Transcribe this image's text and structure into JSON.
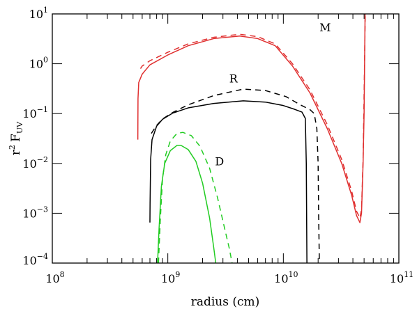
{
  "chart_data": {
    "type": "line",
    "title": "",
    "xlabel": "radius (cm)",
    "ylabel": "r² F_UV",
    "x_scale": "log",
    "y_scale": "log",
    "xlim": [
      100000000.0,
      100000000000.0
    ],
    "ylim": [
      0.0001,
      10
    ],
    "grid": false,
    "legend": "none",
    "x_ticks": [
      {
        "value": 100000000.0,
        "base": "10",
        "exp": "8"
      },
      {
        "value": 1000000000.0,
        "base": "10",
        "exp": "9"
      },
      {
        "value": 10000000000.0,
        "base": "10",
        "exp": "10"
      },
      {
        "value": 100000000000.0,
        "base": "10",
        "exp": "11"
      }
    ],
    "y_ticks": [
      {
        "value": 0.0001,
        "base": "10",
        "exp": "−4"
      },
      {
        "value": 0.001,
        "base": "10",
        "exp": "−3"
      },
      {
        "value": 0.01,
        "base": "10",
        "exp": "−2"
      },
      {
        "value": 0.1,
        "base": "10",
        "exp": "−1"
      },
      {
        "value": 1,
        "base": "10",
        "exp": "0"
      },
      {
        "value": 10,
        "base": "10",
        "exp": "1"
      }
    ],
    "annotations": [
      {
        "text": "M",
        "x": 23000000000.0,
        "y": 4.5
      },
      {
        "text": "R",
        "x": 3700000000.0,
        "y": 0.42
      },
      {
        "text": "D",
        "x": 2800000000.0,
        "y": 0.0092
      }
    ],
    "series": [
      {
        "style": "solid",
        "color": "#e03030",
        "x": [
          550000000.0,
          552000000.0,
          560000000.0,
          600000000.0,
          700000000.0,
          1000000000.0,
          1500000000.0,
          2500000000.0,
          4200000000.0,
          6000000000.0,
          8500000000.0,
          12000000000.0,
          17000000000.0,
          24000000000.0,
          32000000000.0,
          39000000000.0,
          43000000000.0,
          46000000000.0,
          47500000000.0,
          49000000000.0,
          50000000000.0,
          50500000000.0,
          51000000000.0,
          51200000000.0
        ],
        "y": [
          0.03,
          0.2,
          0.42,
          0.62,
          0.95,
          1.5,
          2.3,
          3.2,
          3.6,
          3.2,
          2.3,
          0.9,
          0.26,
          0.05,
          0.01,
          0.0023,
          0.0009,
          0.00065,
          0.001,
          0.01,
          0.1,
          1,
          10,
          12
        ]
      },
      {
        "style": "dashed",
        "color": "#e03030",
        "x": [
          580000000.0,
          600000000.0,
          700000000.0,
          1000000000.0,
          1500000000.0,
          2500000000.0,
          4200000000.0,
          6000000000.0,
          8500000000.0,
          12000000000.0,
          17000000000.0,
          24000000000.0,
          32000000000.0,
          39000000000.0,
          43000000000.0,
          46000000000.0,
          47500000000.0,
          49000000000.0,
          50500000000.0,
          51200000000.0
        ],
        "y": [
          0.8,
          0.9,
          1.15,
          1.7,
          2.5,
          3.4,
          3.9,
          3.5,
          2.5,
          1.0,
          0.3,
          0.06,
          0.012,
          0.0028,
          0.0011,
          0.0008,
          0.0012,
          0.012,
          1.2,
          12
        ]
      },
      {
        "style": "solid",
        "color": "#000000",
        "x": [
          700000000.0,
          702000000.0,
          710000000.0,
          730000000.0,
          800000000.0,
          900000000.0,
          1100000000.0,
          1500000000.0,
          2500000000.0,
          4500000000.0,
          7000000000.0,
          10000000000.0,
          12500000000.0,
          14500000000.0,
          15500000000.0,
          15800000000.0,
          16000000000.0
        ],
        "y": [
          0.00065,
          0.0016,
          0.012,
          0.03,
          0.056,
          0.077,
          0.102,
          0.13,
          0.16,
          0.18,
          0.17,
          0.145,
          0.122,
          0.107,
          0.08,
          0.01,
          0.0001
        ]
      },
      {
        "style": "dashed",
        "color": "#000000",
        "x": [
          720000000.0,
          800000000.0,
          900000000.0,
          1100000000.0,
          1500000000.0,
          2500000000.0,
          4500000000.0,
          7000000000.0,
          10500000000.0,
          14000000000.0,
          17000000000.0,
          18500000000.0,
          19500000000.0,
          20000000000.0,
          20200000000.0,
          20500000000.0
        ],
        "y": [
          0.04,
          0.058,
          0.078,
          0.105,
          0.15,
          0.23,
          0.31,
          0.29,
          0.22,
          0.15,
          0.12,
          0.1,
          0.05,
          0.01,
          0.001,
          0.0001
        ]
      },
      {
        "style": "solid",
        "color": "#22cc22",
        "x": [
          815000000.0,
          840000000.0,
          880000000.0,
          940000000.0,
          1050000000.0,
          1200000000.0,
          1300000000.0,
          1500000000.0,
          1750000000.0,
          2000000000.0,
          2300000000.0,
          2500000000.0,
          2600000000.0
        ],
        "y": [
          0.0001,
          0.0005,
          0.0035,
          0.01,
          0.018,
          0.023,
          0.023,
          0.019,
          0.011,
          0.004,
          0.0008,
          0.0002,
          0.0001
        ]
      },
      {
        "style": "dashed",
        "color": "#22cc22",
        "x": [
          830000000.0,
          860000000.0,
          900000000.0,
          960000000.0,
          1050000000.0,
          1200000000.0,
          1350000000.0,
          1600000000.0,
          1900000000.0,
          2300000000.0,
          2700000000.0,
          3100000000.0,
          3400000000.0,
          3600000000.0
        ],
        "y": [
          0.0001,
          0.0007,
          0.005,
          0.015,
          0.028,
          0.04,
          0.042,
          0.036,
          0.022,
          0.008,
          0.002,
          0.0005,
          0.0002,
          0.0001
        ]
      }
    ]
  }
}
